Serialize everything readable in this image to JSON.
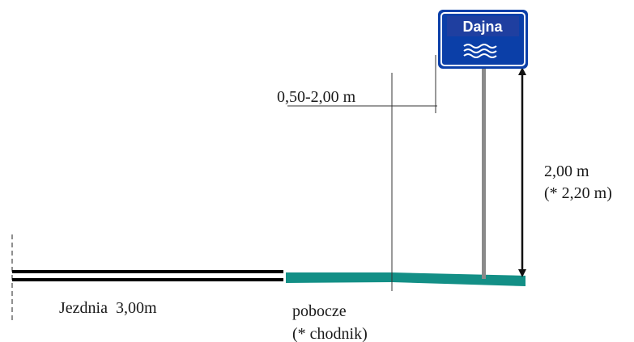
{
  "sign": {
    "name": "Dajna",
    "icon": "water-waves-icon",
    "colors": {
      "background": "#0b3fa8",
      "inner_panel": "#1f3fa0",
      "border": "#ffffff",
      "frame": "#0b3fa8"
    }
  },
  "labels": {
    "offset": "0,50-2,00 m",
    "height_line1": "2,00 m",
    "height_line2": "(* 2,20 m)",
    "roadway": "Jezdnia  3,00m",
    "shoulder_line1": "pobocze",
    "shoulder_line2": "(* chodnik)"
  },
  "colors": {
    "shoulder": "#138f86",
    "post": "#8a8a8a",
    "road": "#000000",
    "lines": "#333333"
  }
}
